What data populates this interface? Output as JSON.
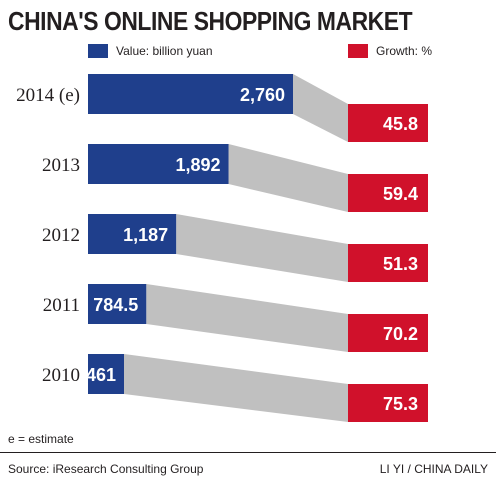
{
  "chart_data": {
    "type": "bar",
    "title": "CHINA'S ONLINE SHOPPING MARKET",
    "categories": [
      "2014 (e)",
      "2013",
      "2012",
      "2011",
      "2010"
    ],
    "series": [
      {
        "name": "Value: billion yuan",
        "values": [
          2760,
          1892,
          1187,
          784.5,
          461
        ],
        "labels": [
          "2,760",
          "1,892",
          "1,187",
          "784.5",
          "461"
        ],
        "color": "#1f3f8c"
      },
      {
        "name": "Growth: %",
        "values": [
          45.8,
          59.4,
          51.3,
          70.2,
          75.3
        ],
        "labels": [
          "45.8",
          "59.4",
          "51.3",
          "70.2",
          "75.3"
        ],
        "color": "#d0112b"
      }
    ],
    "connector_color": "#c0c0c0",
    "legend_position": "top",
    "grid": false
  },
  "footnote": "e = estimate",
  "source": "Source: iResearch Consulting Group",
  "credit": "LI YI / CHINA DAILY"
}
